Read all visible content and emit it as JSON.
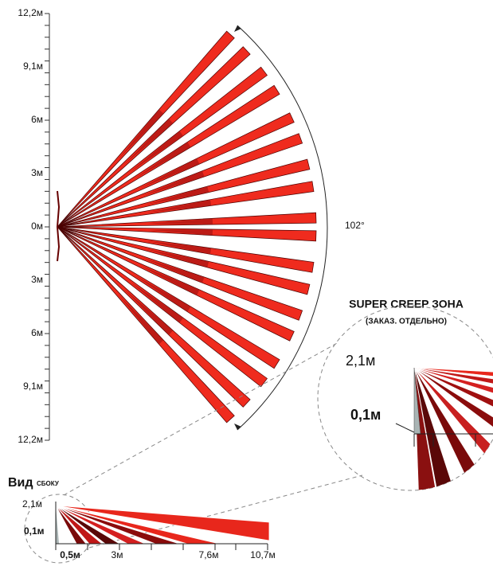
{
  "top_view": {
    "axis_labels": [
      "12,2м",
      "9,1м",
      "6м",
      "3м",
      "0м",
      "3м",
      "6м",
      "9,1м",
      "12,2м"
    ],
    "angle_label": "102°"
  },
  "zoom": {
    "title": "SUPER CREEP ЗОНА",
    "subtitle": "(ЗАКАЗ. ОТДЕЛЬНО)",
    "height_label": "2,1м",
    "min_label": "0,1м"
  },
  "side_view": {
    "title_main": "Вид",
    "title_rest": "сбоку",
    "height_label": "2,1м",
    "min_label": "0,1м",
    "distance_labels": [
      "0,5м",
      "3м",
      "7,6м",
      "10,7м"
    ]
  }
}
